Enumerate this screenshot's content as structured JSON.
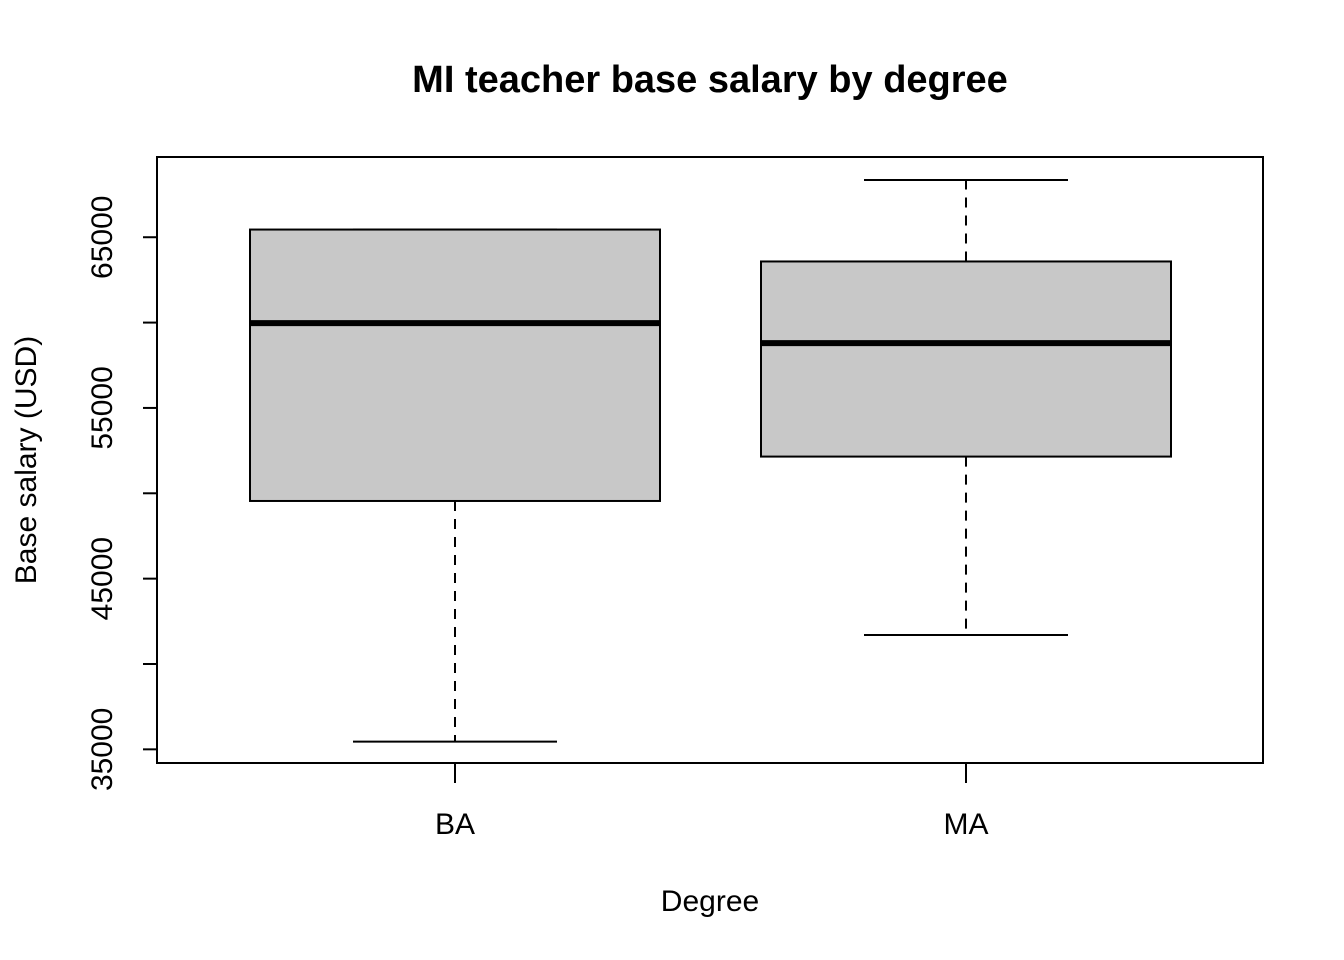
{
  "chart_data": {
    "type": "boxplot",
    "title": "MI teacher base salary by degree",
    "xlabel": "Degree",
    "ylabel": "Base salary (USD)",
    "ylim": [
      34200,
      69700
    ],
    "y_ticks": [
      35000,
      40000,
      45000,
      50000,
      55000,
      60000,
      65000
    ],
    "y_tick_labels": [
      "35000",
      "",
      "45000",
      "",
      "55000",
      "",
      "65000"
    ],
    "categories": [
      "BA",
      "MA"
    ],
    "boxes": [
      {
        "category": "BA",
        "min": 35450,
        "q1": 49550,
        "median": 59970,
        "q3": 65450,
        "max": 65450
      },
      {
        "category": "MA",
        "min": 41700,
        "q1": 52150,
        "median": 58800,
        "q3": 63580,
        "max": 68350
      }
    ],
    "grid": false,
    "colors": {
      "box_fill": "#c8c8c8",
      "stroke": "#000000",
      "background": "#ffffff"
    }
  }
}
